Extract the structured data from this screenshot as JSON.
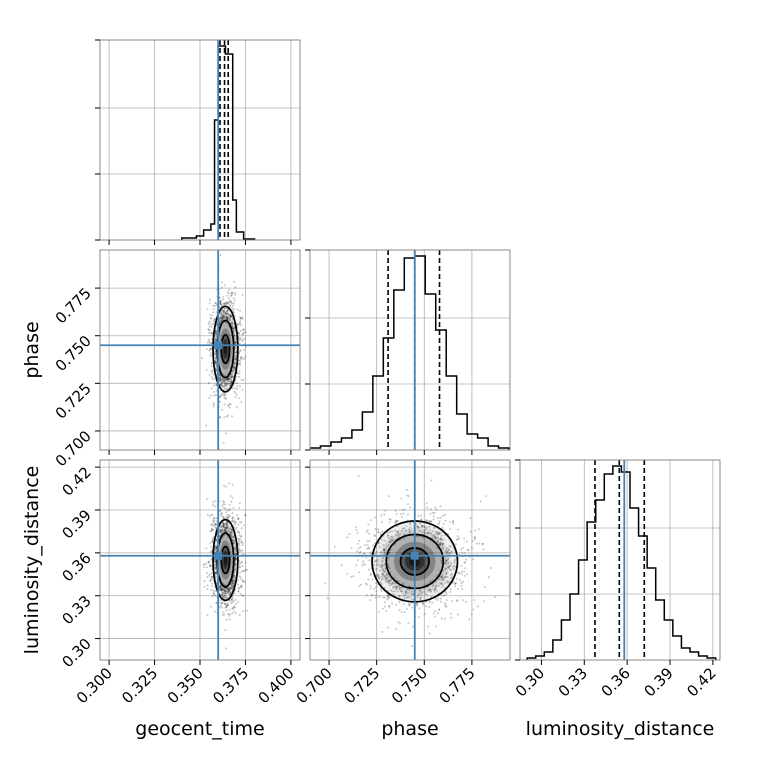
{
  "chart_data": {
    "type": "corner",
    "parameters": [
      "geocent_time",
      "phase",
      "luminosity_distance"
    ],
    "truths": {
      "geocent_time": 0.36,
      "phase": 0.745,
      "luminosity_distance": 0.358
    },
    "truth_color": "#4682b4",
    "grid": true,
    "panels": [
      {
        "kind": "histogram",
        "param": "geocent_time",
        "row": 0,
        "col": 0,
        "xlim": [
          0.295,
          0.405
        ],
        "xticks": [
          0.3,
          0.325,
          0.35,
          0.375,
          0.4
        ],
        "bins": [
          0.34,
          0.348,
          0.352,
          0.356,
          0.358,
          0.36,
          0.362,
          0.364,
          0.366,
          0.368,
          0.37,
          0.374,
          0.38
        ],
        "counts": [
          0.01,
          0.02,
          0.05,
          0.08,
          0.6,
          0.97,
          0.97,
          0.93,
          0.93,
          0.2,
          0.04,
          0.005
        ],
        "quantiles": [
          0.361,
          0.3635,
          0.3655
        ]
      },
      {
        "kind": "histogram",
        "param": "phase",
        "row": 1,
        "col": 1,
        "xlim": [
          0.69,
          0.795
        ],
        "xticks": [
          0.7,
          0.725,
          0.75,
          0.775
        ],
        "bins": [
          0.69,
          0.6955,
          0.701,
          0.7065,
          0.712,
          0.7175,
          0.723,
          0.7285,
          0.734,
          0.7395,
          0.745,
          0.7505,
          0.756,
          0.7615,
          0.767,
          0.7725,
          0.778,
          0.7835,
          0.789,
          0.7945
        ],
        "counts": [
          0.01,
          0.02,
          0.04,
          0.06,
          0.1,
          0.19,
          0.37,
          0.56,
          0.8,
          0.96,
          0.97,
          0.78,
          0.6,
          0.37,
          0.18,
          0.08,
          0.06,
          0.02,
          0.01
        ],
        "quantiles": [
          0.731,
          0.745,
          0.758
        ]
      },
      {
        "kind": "histogram",
        "param": "luminosity_distance",
        "row": 2,
        "col": 2,
        "xlim": [
          0.285,
          0.425
        ],
        "xticks": [
          0.3,
          0.33,
          0.36,
          0.39,
          0.42
        ],
        "bins": [
          0.29,
          0.296,
          0.302,
          0.308,
          0.314,
          0.32,
          0.326,
          0.332,
          0.338,
          0.344,
          0.35,
          0.356,
          0.362,
          0.368,
          0.374,
          0.38,
          0.386,
          0.392,
          0.398,
          0.404,
          0.41,
          0.416,
          0.422
        ],
        "counts": [
          0.01,
          0.02,
          0.04,
          0.1,
          0.2,
          0.33,
          0.5,
          0.69,
          0.8,
          0.93,
          0.97,
          0.94,
          0.76,
          0.62,
          0.46,
          0.3,
          0.2,
          0.12,
          0.06,
          0.04,
          0.02,
          0.01
        ],
        "quantiles": [
          0.3375,
          0.3545,
          0.372
        ]
      },
      {
        "kind": "2d",
        "xparam": "geocent_time",
        "yparam": "phase",
        "row": 1,
        "col": 0,
        "xlim": [
          0.295,
          0.405
        ],
        "ylim": [
          0.69,
          0.795
        ],
        "xticks": [
          0.3,
          0.325,
          0.35,
          0.375,
          0.4
        ],
        "yticks": [
          0.7,
          0.725,
          0.75,
          0.775
        ],
        "mean": [
          0.364,
          0.743
        ],
        "spread": [
          0.0035,
          0.0115
        ],
        "levels": [
          0.5,
          1.0,
          1.5
        ]
      },
      {
        "kind": "2d",
        "xparam": "geocent_time",
        "yparam": "luminosity_distance",
        "row": 2,
        "col": 0,
        "xlim": [
          0.295,
          0.405
        ],
        "ylim": [
          0.285,
          0.425
        ],
        "xticks": [
          0.3,
          0.325,
          0.35,
          0.375,
          0.4
        ],
        "yticks": [
          0.3,
          0.33,
          0.36,
          0.39,
          0.42
        ],
        "mean": [
          0.364,
          0.355
        ],
        "spread": [
          0.0035,
          0.0145
        ],
        "levels": [
          0.5,
          1.0,
          1.5
        ]
      },
      {
        "kind": "2d",
        "xparam": "phase",
        "yparam": "luminosity_distance",
        "row": 2,
        "col": 1,
        "xlim": [
          0.69,
          0.795
        ],
        "ylim": [
          0.285,
          0.425
        ],
        "xticks": [
          0.7,
          0.725,
          0.75,
          0.775
        ],
        "yticks": [
          0.3,
          0.33,
          0.36,
          0.39,
          0.42
        ],
        "mean": [
          0.745,
          0.354
        ],
        "spread": [
          0.0115,
          0.0145
        ],
        "levels": [
          0.5,
          1.0,
          1.5
        ]
      }
    ],
    "axis_labels": {
      "x": [
        "geocent_time",
        "phase",
        "luminosity_distance"
      ],
      "y": [
        "phase",
        "luminosity_distance"
      ]
    }
  }
}
